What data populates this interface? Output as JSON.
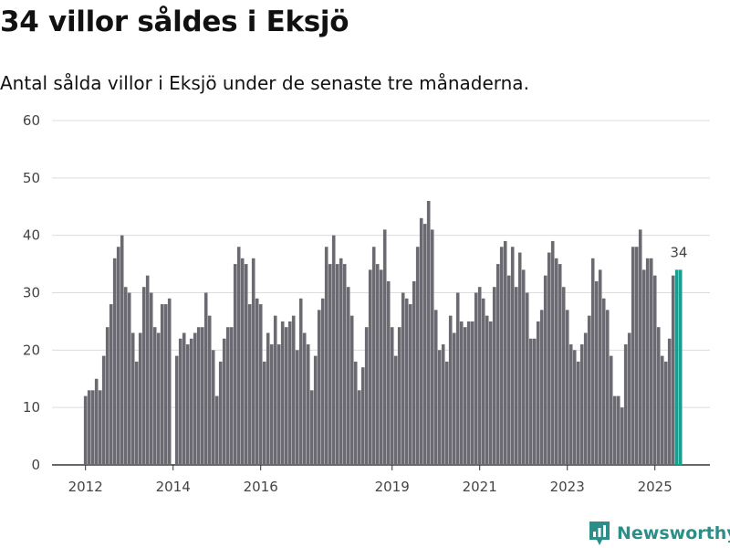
{
  "title": "34 villor såldes i Eksjö",
  "subtitle": "Antal sålda villor i Eksjö under de senaste tre månaderna.",
  "brand": {
    "name": "Newsworthy",
    "icon": "bar-chart-logo-icon",
    "color": "#2b8f87"
  },
  "chart_data": {
    "type": "bar",
    "title": "34 villor såldes i Eksjö",
    "subtitle": "Antal sålda villor i Eksjö under de senaste tre månaderna.",
    "xlabel": "",
    "ylabel": "",
    "ylim": [
      0,
      60
    ],
    "yticks": [
      0,
      10,
      20,
      30,
      40,
      50,
      60
    ],
    "xticks": [
      {
        "label": "2012",
        "index": 0
      },
      {
        "label": "2014",
        "index": 24
      },
      {
        "label": "2016",
        "index": 48
      },
      {
        "label": "2019",
        "index": 84
      },
      {
        "label": "2021",
        "index": 108
      },
      {
        "label": "2023",
        "index": 132
      },
      {
        "label": "2025",
        "index": 156
      }
    ],
    "grid": true,
    "legend": "none",
    "bar_color": "#6b6a70",
    "highlight_color": "#1a9e8f",
    "highlight_last": 2,
    "annotation": {
      "label": "34",
      "index": 162
    },
    "values": [
      12,
      13,
      13,
      15,
      13,
      19,
      24,
      28,
      36,
      38,
      40,
      31,
      30,
      23,
      18,
      23,
      31,
      33,
      30,
      24,
      23,
      28,
      28,
      29,
      0,
      19,
      22,
      23,
      21,
      22,
      23,
      24,
      24,
      30,
      26,
      20,
      12,
      18,
      22,
      24,
      24,
      35,
      38,
      36,
      35,
      28,
      36,
      29,
      28,
      18,
      23,
      21,
      26,
      21,
      25,
      24,
      25,
      26,
      20,
      29,
      23,
      21,
      13,
      19,
      27,
      29,
      38,
      35,
      40,
      35,
      36,
      35,
      31,
      26,
      18,
      13,
      17,
      24,
      34,
      38,
      35,
      34,
      41,
      32,
      24,
      19,
      24,
      30,
      29,
      28,
      32,
      38,
      43,
      42,
      46,
      41,
      27,
      20,
      21,
      18,
      26,
      23,
      30,
      25,
      24,
      25,
      25,
      30,
      31,
      29,
      26,
      25,
      31,
      35,
      38,
      39,
      33,
      38,
      31,
      37,
      34,
      30,
      22,
      22,
      25,
      27,
      33,
      37,
      39,
      36,
      35,
      31,
      27,
      21,
      20,
      18,
      21,
      23,
      26,
      36,
      32,
      34,
      29,
      27,
      19,
      12,
      12,
      10,
      21,
      23,
      38,
      38,
      41,
      34,
      36,
      36,
      33,
      24,
      19,
      18,
      22,
      33,
      34,
      34
    ]
  }
}
